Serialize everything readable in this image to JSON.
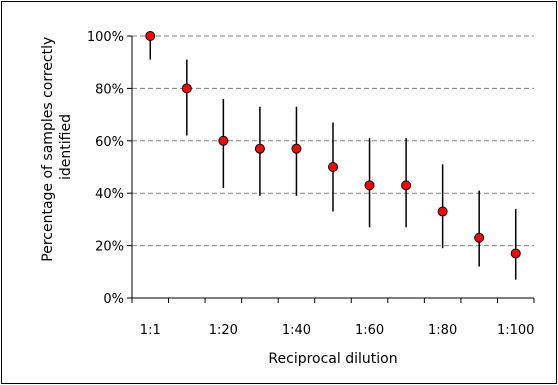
{
  "chart_data": {
    "type": "scatter",
    "title": "",
    "xlabel": "Reciprocal dilution",
    "ylabel_lines": [
      "Percentage of samples correctly",
      "identified"
    ],
    "categories": [
      "1:1",
      "",
      "1:20",
      "",
      "1:40",
      "",
      "1:60",
      "",
      "1:80",
      "",
      "1:100"
    ],
    "x_tick_labels": [
      "1:1",
      "1:20",
      "1:40",
      "1:60",
      "1:80",
      "1:100"
    ],
    "y_tick_labels": [
      "0%",
      "20%",
      "40%",
      "60%",
      "80%",
      "100%"
    ],
    "ylim": [
      0,
      100
    ],
    "grid": "horizontal dashed",
    "legend": "none",
    "series": [
      {
        "values": [
          100,
          80,
          60,
          57,
          57,
          50,
          43,
          43,
          33,
          23,
          17
        ],
        "error_low": [
          91,
          62,
          42,
          39,
          39,
          33,
          27,
          27,
          19,
          12,
          7
        ],
        "error_high": [
          100,
          91,
          76,
          73,
          73,
          67,
          61,
          61,
          51,
          41,
          34
        ]
      }
    ],
    "colors": {
      "marker": "#ff0000",
      "marker_edge": "#000000",
      "error_bar": "#000000",
      "grid": "#808080"
    }
  }
}
